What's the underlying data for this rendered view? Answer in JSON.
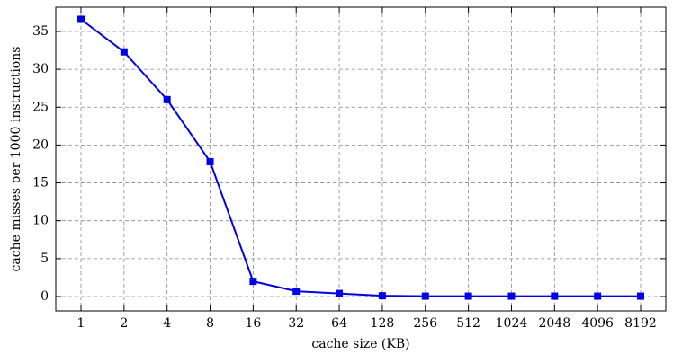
{
  "chart_data": {
    "type": "line",
    "x_label": "cache size (KB)",
    "y_label": "cache misses per 1000 instructions",
    "categories": [
      "1",
      "2",
      "4",
      "8",
      "16",
      "32",
      "64",
      "128",
      "256",
      "512",
      "1024",
      "2048",
      "4096",
      "8192"
    ],
    "values": [
      36.6,
      32.3,
      26.0,
      17.8,
      2.0,
      0.7,
      0.4,
      0.1,
      0.05,
      0.05,
      0.05,
      0.05,
      0.05,
      0.05
    ],
    "color": "#0000e6",
    "marker": "square",
    "ylim": [
      -1.9,
      38.2
    ],
    "yticks": [
      0,
      5,
      10,
      15,
      20,
      25,
      30,
      35
    ],
    "grid": true
  }
}
